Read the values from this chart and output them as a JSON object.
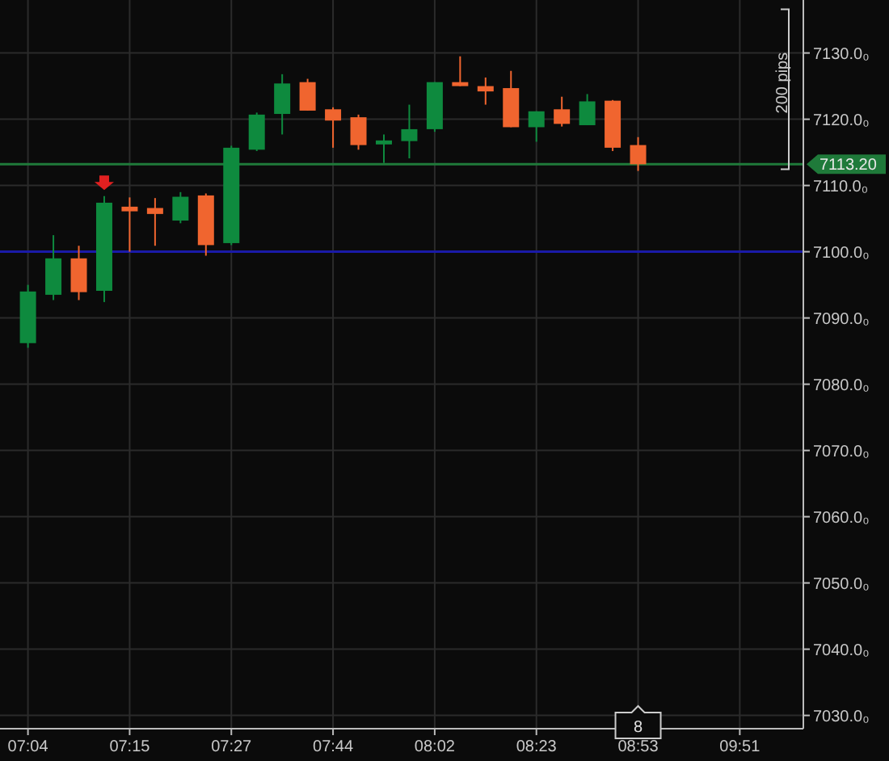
{
  "chart_data": {
    "type": "candlestick",
    "categories": [
      "07:04",
      null,
      null,
      null,
      "07:15",
      null,
      null,
      null,
      "07:27",
      null,
      null,
      null,
      "07:44",
      null,
      null,
      null,
      "08:02",
      null,
      null,
      null,
      "08:23",
      null,
      null,
      null,
      "08:53",
      null,
      null,
      null,
      "09:51",
      null,
      null
    ],
    "ohlc": [
      [
        7086.2,
        7095,
        7085.5,
        7094
      ],
      [
        7093.5,
        7102.5,
        7092.7,
        7099
      ],
      [
        7099,
        7100.9,
        7092.7,
        7093.9
      ],
      [
        7094.1,
        7108.4,
        7092.4,
        7107.4
      ],
      [
        7106.8,
        7108.2,
        7100,
        7106.1
      ],
      [
        7106.6,
        7108.1,
        7100.9,
        7105.7
      ],
      [
        7104.7,
        7109,
        7104.3,
        7108.3
      ],
      [
        7108.5,
        7108.8,
        7099.4,
        7101
      ],
      [
        7101.3,
        7116,
        7101,
        7115.7
      ],
      [
        7115.4,
        7121,
        7115.2,
        7120.7
      ],
      [
        7120.8,
        7126.8,
        7117.7,
        7125.4
      ],
      [
        7125.6,
        7126.1,
        7121.3,
        7121.3
      ],
      [
        7121.5,
        7121.8,
        7115.7,
        7119.8
      ],
      [
        7120.3,
        7120.7,
        7115.4,
        7116.1
      ],
      [
        7116.2,
        7117.7,
        7113.4,
        7116.8
      ],
      [
        7116.7,
        7122.2,
        7114.1,
        7118.5
      ],
      [
        7118.5,
        7125.6,
        7118.1,
        7125.6
      ],
      [
        7125.6,
        7129.5,
        7125,
        7125
      ],
      [
        7125,
        7126.3,
        7122.2,
        7124.2
      ],
      [
        7124.7,
        7127.3,
        7118.8,
        7118.8
      ],
      [
        7118.8,
        7121.2,
        7116.6,
        7121.2
      ],
      [
        7121.5,
        7123.4,
        7118.9,
        7119.3
      ],
      [
        7119.1,
        7123.8,
        7119.1,
        7122.7
      ],
      [
        7122.8,
        7122.9,
        7115.2,
        7115.7
      ],
      [
        7116.1,
        7117.3,
        7112.2,
        7113.2
      ],
      null,
      null,
      null,
      null,
      null,
      null
    ],
    "colors": [
      "#0e8a3e",
      "#0e8a3e",
      "#f0652f",
      "#0e8a3e",
      "#f0652f",
      "#f0652f",
      "#0e8a3e",
      "#f0652f",
      "#0e8a3e",
      "#0e8a3e",
      "#0e8a3e",
      "#f0652f",
      "#f0652f",
      "#f0652f",
      "#0e8a3e",
      "#0e8a3e",
      "#0e8a3e",
      "#f0652f",
      "#f0652f",
      "#f0652f",
      "#0e8a3e",
      "#f0652f",
      "#0e8a3e",
      "#f0652f",
      "#f0652f",
      null,
      null,
      null,
      null,
      null,
      null
    ],
    "ylim": [
      7028,
      7138
    ],
    "yticks": [
      {
        "value": 7030,
        "label": "7030.0₀"
      },
      {
        "value": 7040,
        "label": "7040.0₀"
      },
      {
        "value": 7050,
        "label": "7050.0₀"
      },
      {
        "value": 7060,
        "label": "7060.0₀"
      },
      {
        "value": 7070,
        "label": "7070.0₀"
      },
      {
        "value": 7080,
        "label": "7080.0₀"
      },
      {
        "value": 7090,
        "label": "7090.0₀"
      },
      {
        "value": 7100,
        "label": "7100.0₀"
      },
      {
        "value": 7110,
        "label": "7110.0₀"
      },
      {
        "value": 7120,
        "label": "7120.0₀"
      },
      {
        "value": 7130,
        "label": "7130.0₀"
      }
    ],
    "ref_lines": [
      {
        "axis": "y",
        "value": 7113.2,
        "label": "7113.20",
        "color": "#1f7a3a"
      },
      {
        "axis": "y",
        "value": 7100,
        "color": "#1a1aa8"
      }
    ],
    "annotations": [
      "200 pips",
      "8"
    ],
    "grid": true
  }
}
